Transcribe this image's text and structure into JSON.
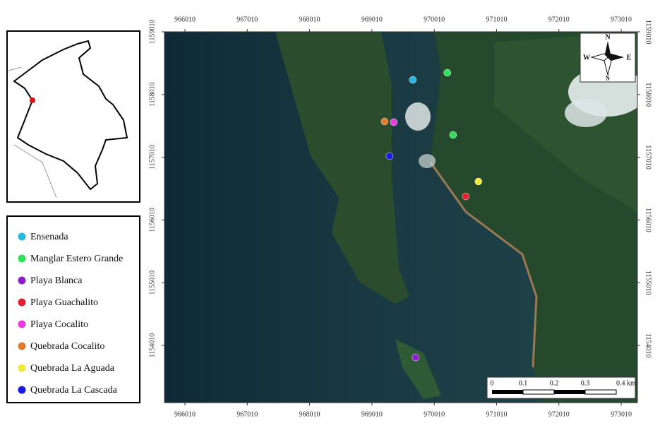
{
  "map": {
    "xlim": [
      965682,
      973270
    ],
    "ylim": [
      1153098,
      1159010
    ],
    "xticks": [
      966010,
      967010,
      968010,
      969010,
      970010,
      971010,
      972010,
      973010
    ],
    "yticks": [
      1154010,
      1155010,
      1156010,
      1157010,
      1158010,
      1159010
    ],
    "sites": [
      {
        "name": "Ensenada",
        "color": "#29b6e0",
        "x": [
          969667
        ],
        "y": [
          1158244
        ]
      },
      {
        "name": "Manglar Estero Grande",
        "color": "#2ee05a",
        "x": [
          970221,
          970312
        ],
        "y": [
          1158357,
          1157366
        ]
      },
      {
        "name": "Playa Blanca",
        "color": "#8a1fc8",
        "x": [
          969712
        ],
        "y": [
          1153819
        ]
      },
      {
        "name": "Playa Guachalito",
        "color": "#e0202e",
        "x": [
          970516
        ],
        "y": [
          1156386
        ]
      },
      {
        "name": "Playa Cocalito",
        "color": "#e83be0",
        "x": [
          969361
        ],
        "y": [
          1157569
        ]
      },
      {
        "name": "Quebrada Cocalito",
        "color": "#e07b2e",
        "x": [
          969214
        ],
        "y": [
          1157580
        ]
      },
      {
        "name": "Quebrada La Aguada",
        "color": "#f0e83a",
        "x": [
          970719
        ],
        "y": [
          1156623
        ]
      },
      {
        "name": "Quebrada La Cascada",
        "color": "#1a1ae0",
        "x": [
          969293
        ],
        "y": [
          1157028
        ]
      }
    ],
    "scale_labels": [
      "0",
      "0.1",
      "0.2",
      "0.3",
      "0.4 km"
    ],
    "compass": {
      "n": "N",
      "s": "S",
      "e": "E",
      "w": "W"
    }
  }
}
